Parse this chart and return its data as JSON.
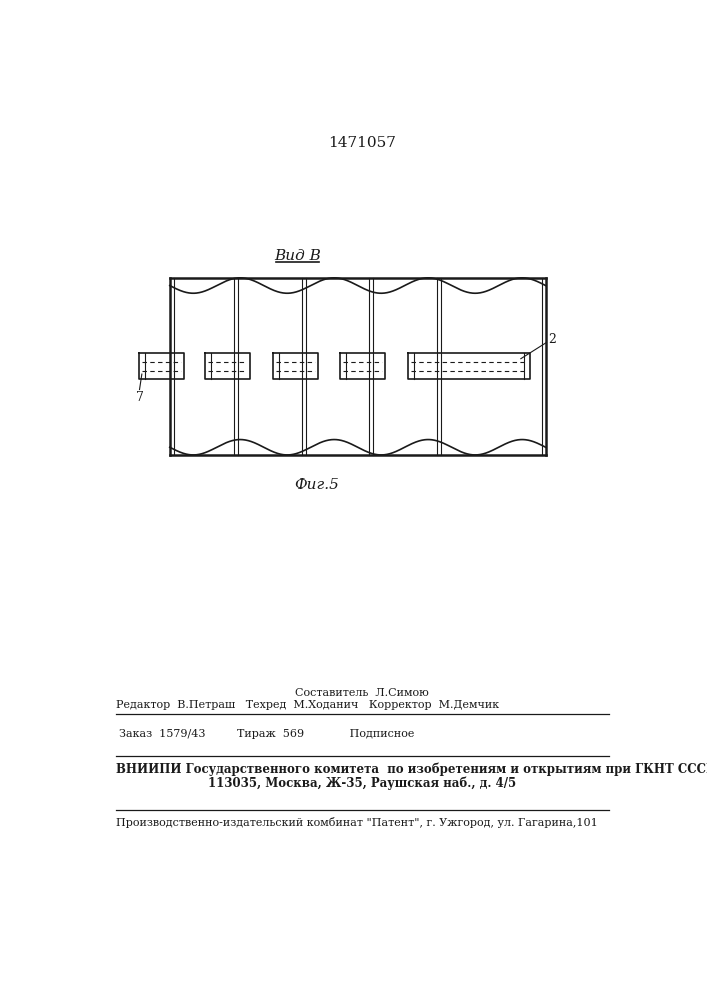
{
  "patent_number": "1471057",
  "view_label": "Вид В",
  "fig_label": "Фиг.5",
  "label_2": "2",
  "label_7": "7",
  "footer_sestavitel": "Составитель  Л.Симою",
  "footer_redaktor": "Редактор  В.Петраш   Техред  М.Ходанич   Корректор  М.Демчик",
  "footer_zakaz": "Заказ  1579/43         Тираж  569             Подписное",
  "footer_vniipи1": "ВНИИПИ Государственного комитета  по изобретениям и открытиям при ГКНТ СССР",
  "footer_vniipи2": "113035, Москва, Ж-35, Раушская наб., д. 4/5",
  "footer_patent": "Производственно-издательский комбинат \"Патент\", г. Ужгород, ул. Гагарина,101",
  "bg_color": "#ffffff",
  "line_color": "#1a1a1a"
}
